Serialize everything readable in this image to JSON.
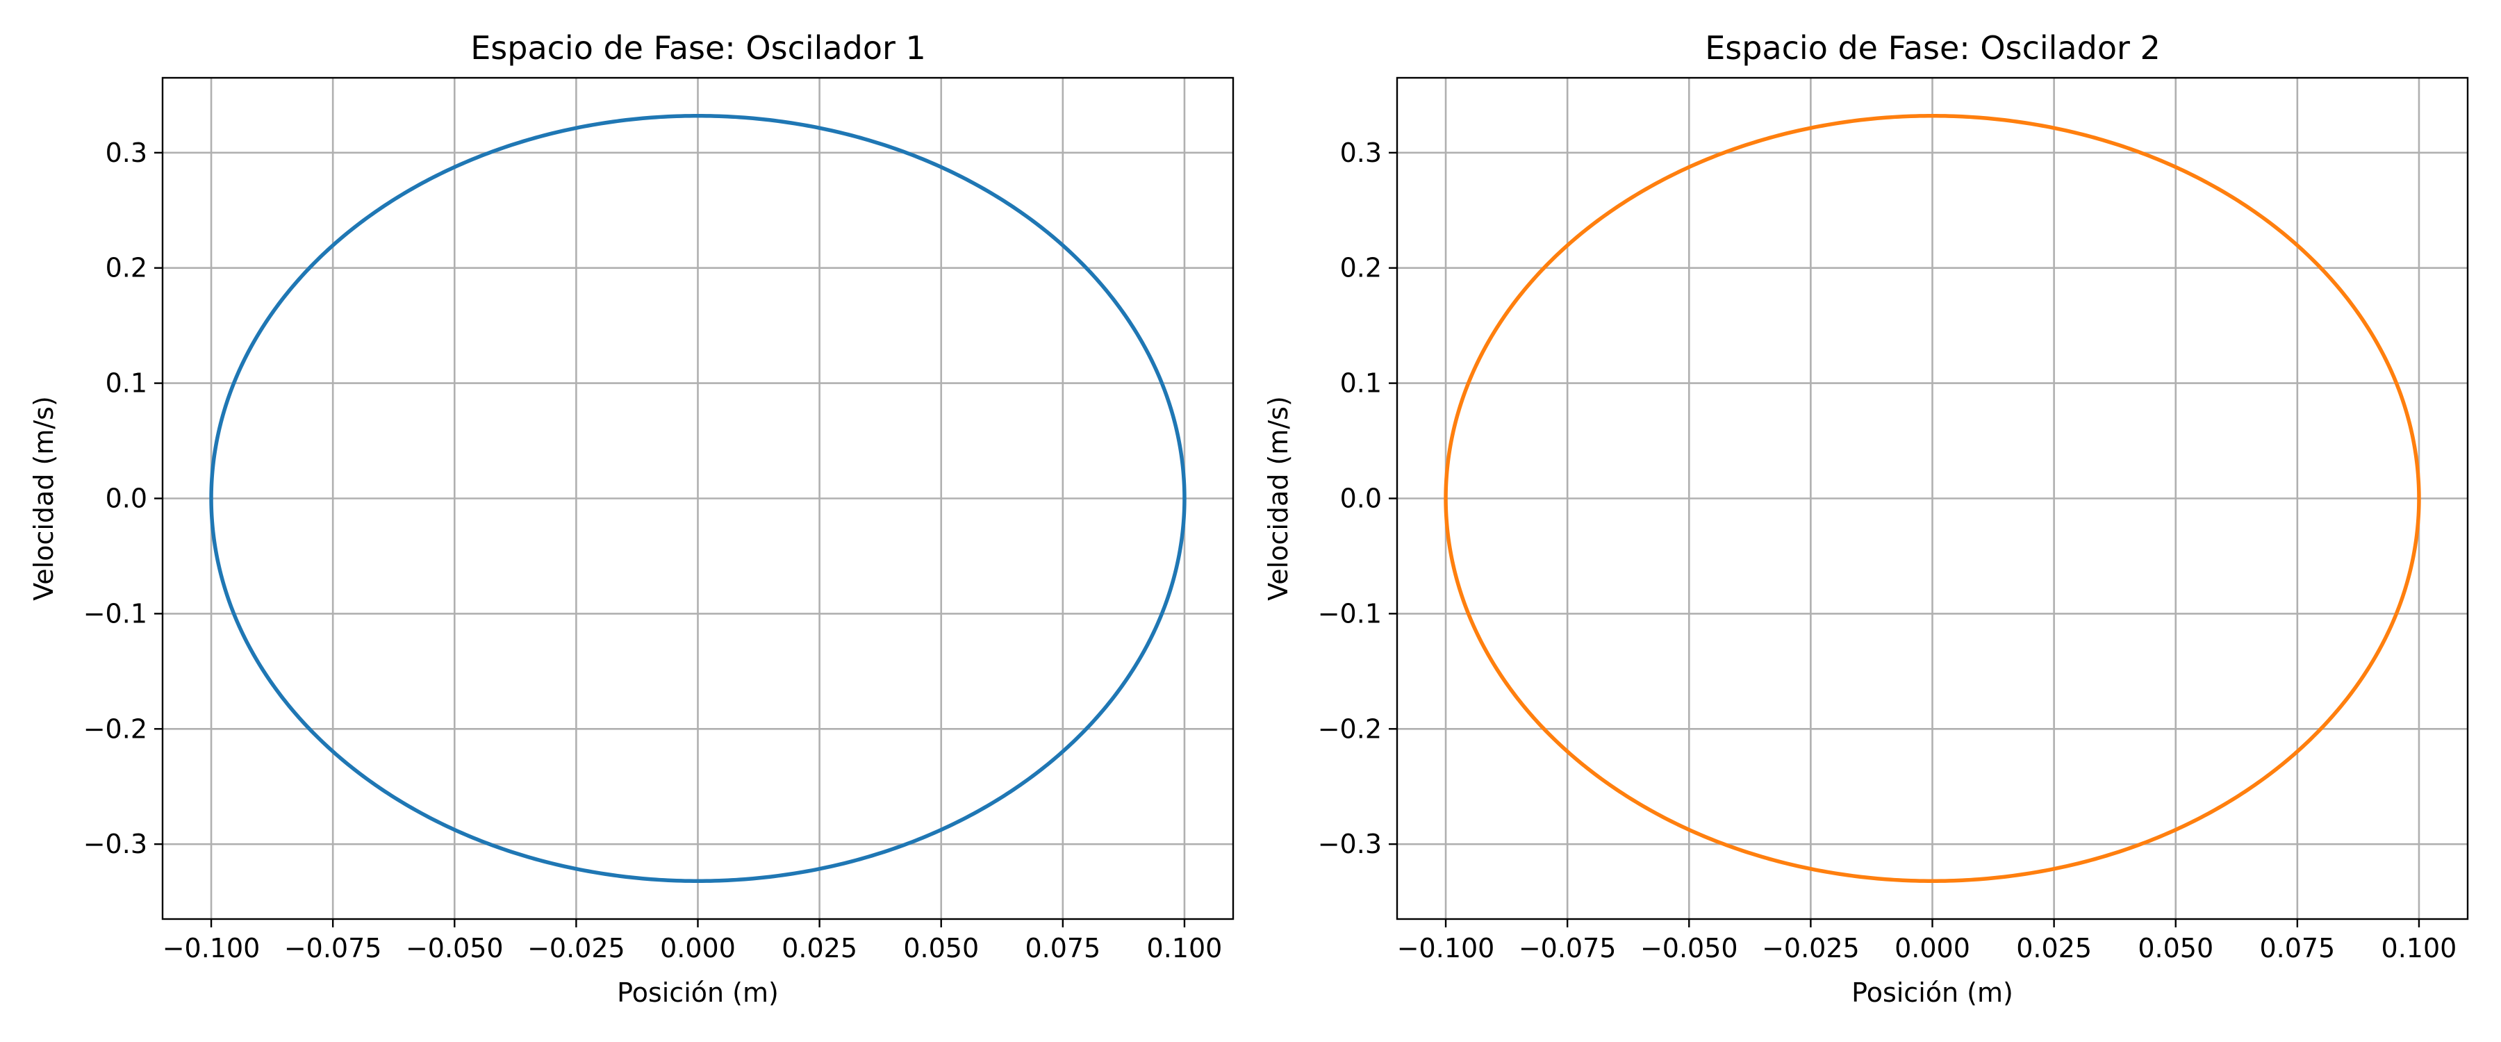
{
  "chart_data": [
    {
      "type": "line",
      "title": "Espacio de Fase: Oscilador 1",
      "xlabel": "Posición (m)",
      "ylabel": "Velocidad (m/s)",
      "xlim": [
        -0.11,
        0.11
      ],
      "ylim": [
        -0.365,
        0.365
      ],
      "xticks": [
        -0.1,
        -0.075,
        -0.05,
        -0.025,
        0.0,
        0.025,
        0.05,
        0.075,
        0.1
      ],
      "xtick_labels": [
        "−0.100",
        "−0.075",
        "−0.050",
        "−0.025",
        "0.000",
        "0.025",
        "0.050",
        "0.075",
        "0.100"
      ],
      "yticks": [
        -0.3,
        -0.2,
        -0.1,
        0.0,
        0.1,
        0.2,
        0.3
      ],
      "ytick_labels": [
        "−0.3",
        "−0.2",
        "−0.1",
        "0.0",
        "0.1",
        "0.2",
        "0.3"
      ],
      "grid": true,
      "series": [
        {
          "color": "#1f77b4",
          "shape": "ellipse",
          "x_amplitude": 0.1,
          "y_amplitude": 0.332,
          "x": [
            0.1,
            0.0866,
            0.05,
            0.0,
            -0.05,
            -0.0866,
            -0.1,
            -0.0866,
            -0.05,
            0.0,
            0.05,
            0.0866,
            0.1
          ],
          "y": [
            0.0,
            0.166,
            0.2875,
            0.332,
            0.2875,
            0.166,
            0.0,
            -0.166,
            -0.2875,
            -0.332,
            -0.2875,
            -0.166,
            0.0
          ]
        }
      ]
    },
    {
      "type": "line",
      "title": "Espacio de Fase: Oscilador 2",
      "xlabel": "Posición (m)",
      "ylabel": "Velocidad (m/s)",
      "xlim": [
        -0.11,
        0.11
      ],
      "ylim": [
        -0.365,
        0.365
      ],
      "xticks": [
        -0.1,
        -0.075,
        -0.05,
        -0.025,
        0.0,
        0.025,
        0.05,
        0.075,
        0.1
      ],
      "xtick_labels": [
        "−0.100",
        "−0.075",
        "−0.050",
        "−0.025",
        "0.000",
        "0.025",
        "0.050",
        "0.075",
        "0.100"
      ],
      "yticks": [
        -0.3,
        -0.2,
        -0.1,
        0.0,
        0.1,
        0.2,
        0.3
      ],
      "ytick_labels": [
        "−0.3",
        "−0.2",
        "−0.1",
        "0.0",
        "0.1",
        "0.2",
        "0.3"
      ],
      "grid": true,
      "series": [
        {
          "color": "#ff7f0e",
          "shape": "ellipse",
          "x_amplitude": 0.1,
          "y_amplitude": 0.332,
          "x": [
            0.1,
            0.0866,
            0.05,
            0.0,
            -0.05,
            -0.0866,
            -0.1,
            -0.0866,
            -0.05,
            0.0,
            0.05,
            0.0866,
            0.1
          ],
          "y": [
            0.0,
            0.166,
            0.2875,
            0.332,
            0.2875,
            0.166,
            0.0,
            -0.166,
            -0.2875,
            -0.332,
            -0.2875,
            -0.166,
            0.0
          ]
        }
      ]
    }
  ]
}
